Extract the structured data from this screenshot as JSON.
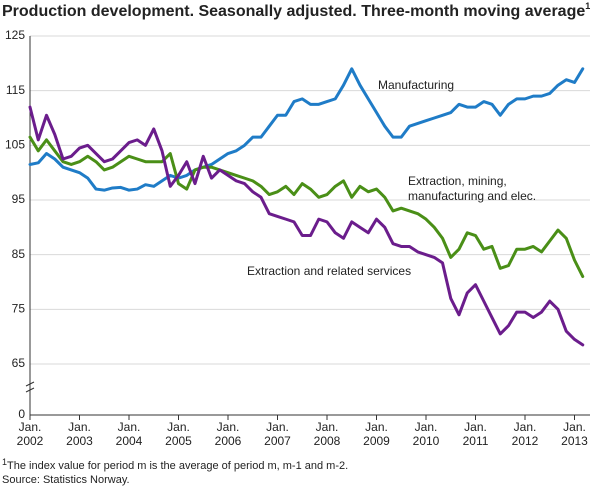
{
  "chart_data": {
    "type": "line",
    "title": "Production development. Seasonally adjusted. Three-month moving average",
    "title_note": "1",
    "footnote": "The index value for period m is the average of period m, m-1 and m-2.",
    "source": "Source: Statistics Norway.",
    "categories": [
      "Jan. 2002",
      null,
      null,
      null,
      null,
      null,
      "Jan. 2003",
      null,
      null,
      null,
      null,
      null,
      "Jan. 2004",
      null,
      null,
      null,
      null,
      null,
      "Jan. 2005",
      null,
      null,
      null,
      null,
      null,
      "Jan. 2006",
      null,
      null,
      null,
      null,
      null,
      "Jan. 2007",
      null,
      null,
      null,
      null,
      null,
      "Jan. 2008",
      null,
      null,
      null,
      null,
      null,
      "Jan. 2009",
      null,
      null,
      null,
      null,
      null,
      "Jan. 2010",
      null,
      null,
      null,
      null,
      null,
      "Jan. 2011",
      null,
      null,
      null,
      null,
      null,
      "Jan. 2012",
      null,
      null,
      null,
      null,
      null,
      "Jan. 2013",
      null
    ],
    "series": [
      {
        "name": "Manufacturing",
        "color": "#1f7cc7",
        "values": [
          101.5,
          101.8,
          103.5,
          102.5,
          101,
          100.5,
          100,
          99,
          97,
          96.8,
          97.2,
          97.3,
          96.8,
          97,
          97.8,
          97.5,
          98.5,
          99.5,
          99,
          99.5,
          100.5,
          101,
          101.5,
          102.5,
          103.5,
          104,
          105,
          106.5,
          106.5,
          108.5,
          110.5,
          110.5,
          113,
          113.5,
          112.5,
          112.5,
          113,
          113.5,
          116,
          119,
          116,
          113.5,
          111,
          108.5,
          106.5,
          106.5,
          108.5,
          109,
          109.5,
          110,
          110.5,
          111,
          112.5,
          112,
          112,
          113,
          112.5,
          110.5,
          112.5,
          113.5,
          113.5,
          114,
          114,
          114.5,
          116,
          117,
          116.5,
          119
        ]
      },
      {
        "name": "Extraction, mining, manufacturing and elec.",
        "color": "#4a8f17",
        "values": [
          106.5,
          104,
          106,
          104,
          102,
          101.5,
          102,
          103,
          102,
          100.5,
          101,
          102,
          103,
          102.5,
          102,
          102,
          102,
          103.5,
          98,
          97,
          100.5,
          101,
          101,
          100.5,
          100,
          99.5,
          99,
          98.5,
          97.5,
          96,
          96.5,
          97.5,
          96,
          98,
          97,
          95.5,
          96,
          97.5,
          98.5,
          95.5,
          97.5,
          96.5,
          97,
          95.5,
          93,
          93.5,
          93,
          92.5,
          91.5,
          90,
          88,
          84.5,
          86,
          89,
          88.5,
          86,
          86.5,
          82.5,
          83,
          86,
          86,
          86.5,
          85.5,
          87.5,
          89.5,
          88,
          84,
          81
        ]
      },
      {
        "name": "Extraction and related services",
        "color": "#6b1d8c",
        "values": [
          112,
          106,
          110.5,
          107,
          102.5,
          103,
          104.5,
          105,
          103.5,
          102,
          102.5,
          104,
          105.5,
          106,
          105,
          108,
          104,
          97.5,
          99.5,
          102,
          98,
          103,
          99,
          100.5,
          99.5,
          98.5,
          98,
          96.5,
          95.5,
          92.5,
          92,
          91.5,
          91,
          88.5,
          88.5,
          91.5,
          91,
          89,
          88,
          91,
          90,
          89,
          91.5,
          90,
          87,
          86.5,
          86.5,
          85.5,
          85,
          84.5,
          83.5,
          77,
          74,
          78,
          79.5,
          76.5,
          73.5,
          70.5,
          72,
          74.5,
          74.5,
          73.5,
          74.5,
          76.5,
          75,
          71,
          69.5,
          68.5
        ]
      }
    ],
    "ylim": [
      0,
      125
    ],
    "yticks": [
      0,
      65,
      75,
      85,
      95,
      105,
      115,
      125
    ],
    "axis_break": true,
    "grid": true
  }
}
